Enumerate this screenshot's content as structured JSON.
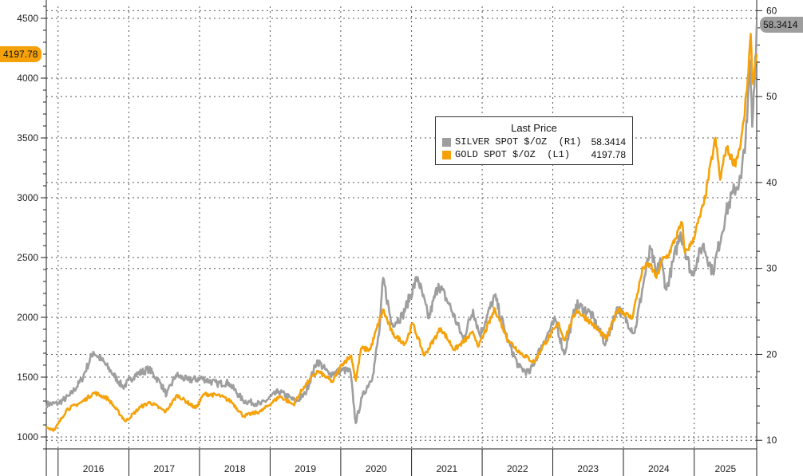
{
  "chart_data": {
    "type": "line",
    "x_range": [
      "2015-11-01",
      "2025-11-20"
    ],
    "left_axis": {
      "ticks": [
        1000,
        1500,
        2000,
        2500,
        3000,
        3500,
        4000,
        4500
      ],
      "ylim": [
        900,
        4600
      ]
    },
    "right_axis": {
      "ticks": [
        10,
        20,
        30,
        40,
        50,
        60
      ],
      "ylim": [
        9,
        60.5
      ]
    },
    "x_tick_labels": [
      "2016",
      "2017",
      "2018",
      "2019",
      "2020",
      "2021",
      "2022",
      "2023",
      "2024",
      "2025"
    ],
    "grid": true,
    "legend": {
      "title": "Last Price",
      "placement": "top-center-right",
      "entries": [
        {
          "label": "SILVER SPOT $/OZ  (R1)",
          "value": "58.3414",
          "color": "#9e9e9e"
        },
        {
          "label": "GOLD SPOT $/OZ  (L1)",
          "value": "4197.78",
          "color": "#f5a20a"
        }
      ]
    },
    "last_value_badges": {
      "left": "4197.78",
      "right": "58.3414"
    },
    "series": [
      {
        "name": "SILVER SPOT $/OZ (R1)",
        "axis": "right",
        "color": "#9e9e9e",
        "points": [
          [
            "2015-11-01",
            14.2
          ],
          [
            "2016-01-01",
            14.3
          ],
          [
            "2016-03-01",
            15.2
          ],
          [
            "2016-05-01",
            17.0
          ],
          [
            "2016-07-01",
            20.3
          ],
          [
            "2016-08-15",
            19.3
          ],
          [
            "2016-10-01",
            18.0
          ],
          [
            "2016-12-01",
            16.2
          ],
          [
            "2017-02-01",
            17.6
          ],
          [
            "2017-04-15",
            18.3
          ],
          [
            "2017-06-15",
            16.6
          ],
          [
            "2017-07-15",
            15.3
          ],
          [
            "2017-09-01",
            17.6
          ],
          [
            "2017-11-01",
            17.0
          ],
          [
            "2018-01-15",
            17.2
          ],
          [
            "2018-04-01",
            16.6
          ],
          [
            "2018-06-01",
            16.7
          ],
          [
            "2018-08-15",
            14.6
          ],
          [
            "2018-11-15",
            14.2
          ],
          [
            "2019-02-15",
            15.7
          ],
          [
            "2019-05-15",
            14.5
          ],
          [
            "2019-07-01",
            15.4
          ],
          [
            "2019-09-01",
            19.3
          ],
          [
            "2019-11-01",
            17.7
          ],
          [
            "2020-01-15",
            18.2
          ],
          [
            "2020-02-20",
            18.0
          ],
          [
            "2020-03-18",
            12.0
          ],
          [
            "2020-04-20",
            15.0
          ],
          [
            "2020-06-15",
            17.6
          ],
          [
            "2020-07-20",
            23.0
          ],
          [
            "2020-08-07",
            28.9
          ],
          [
            "2020-09-20",
            23.5
          ],
          [
            "2020-11-15",
            24.5
          ],
          [
            "2021-02-01",
            29.0
          ],
          [
            "2021-03-31",
            24.2
          ],
          [
            "2021-05-20",
            28.2
          ],
          [
            "2021-07-15",
            25.8
          ],
          [
            "2021-09-25",
            21.8
          ],
          [
            "2021-11-15",
            25.2
          ],
          [
            "2021-12-20",
            22.2
          ],
          [
            "2022-03-07",
            26.8
          ],
          [
            "2022-05-15",
            21.5
          ],
          [
            "2022-07-10",
            18.5
          ],
          [
            "2022-09-01",
            17.8
          ],
          [
            "2022-11-15",
            21.5
          ],
          [
            "2023-01-15",
            24.0
          ],
          [
            "2023-03-01",
            20.0
          ],
          [
            "2023-05-01",
            25.8
          ],
          [
            "2023-07-15",
            24.8
          ],
          [
            "2023-10-01",
            21.2
          ],
          [
            "2023-12-01",
            25.5
          ],
          [
            "2024-02-28",
            22.5
          ],
          [
            "2024-04-15",
            28.5
          ],
          [
            "2024-05-20",
            32.3
          ],
          [
            "2024-06-20",
            29.2
          ],
          [
            "2024-07-10",
            31.2
          ],
          [
            "2024-08-10",
            27.5
          ],
          [
            "2024-10-22",
            34.2
          ],
          [
            "2024-12-20",
            29.2
          ],
          [
            "2025-02-15",
            32.8
          ],
          [
            "2025-04-07",
            29.5
          ],
          [
            "2025-06-15",
            36.5
          ],
          [
            "2025-07-20",
            38.8
          ],
          [
            "2025-09-01",
            40.5
          ],
          [
            "2025-10-01",
            47.0
          ],
          [
            "2025-10-16",
            54.2
          ],
          [
            "2025-10-28",
            46.5
          ],
          [
            "2025-11-20",
            58.3414
          ]
        ]
      },
      {
        "name": "GOLD SPOT $/OZ (L1)",
        "axis": "left",
        "color": "#f5a20a",
        "points": [
          [
            "2015-11-01",
            1080
          ],
          [
            "2015-12-15",
            1060
          ],
          [
            "2016-02-15",
            1230
          ],
          [
            "2016-05-01",
            1290
          ],
          [
            "2016-07-06",
            1370
          ],
          [
            "2016-09-15",
            1320
          ],
          [
            "2016-12-15",
            1130
          ],
          [
            "2017-03-01",
            1250
          ],
          [
            "2017-04-20",
            1290
          ],
          [
            "2017-07-10",
            1210
          ],
          [
            "2017-09-08",
            1350
          ],
          [
            "2017-12-12",
            1240
          ],
          [
            "2018-01-25",
            1360
          ],
          [
            "2018-04-15",
            1345
          ],
          [
            "2018-06-15",
            1295
          ],
          [
            "2018-08-16",
            1175
          ],
          [
            "2018-11-15",
            1215
          ],
          [
            "2019-02-20",
            1340
          ],
          [
            "2019-05-01",
            1270
          ],
          [
            "2019-06-25",
            1420
          ],
          [
            "2019-09-04",
            1550
          ],
          [
            "2019-11-20",
            1460
          ],
          [
            "2020-01-08",
            1610
          ],
          [
            "2020-02-24",
            1680
          ],
          [
            "2020-03-19",
            1470
          ],
          [
            "2020-04-15",
            1740
          ],
          [
            "2020-06-01",
            1730
          ],
          [
            "2020-08-06",
            2065
          ],
          [
            "2020-09-25",
            1860
          ],
          [
            "2020-11-30",
            1780
          ],
          [
            "2021-01-06",
            1950
          ],
          [
            "2021-03-08",
            1680
          ],
          [
            "2021-06-01",
            1910
          ],
          [
            "2021-08-10",
            1730
          ],
          [
            "2021-11-16",
            1870
          ],
          [
            "2021-12-15",
            1760
          ],
          [
            "2022-03-08",
            2070
          ],
          [
            "2022-05-15",
            1810
          ],
          [
            "2022-07-20",
            1700
          ],
          [
            "2022-09-26",
            1625
          ],
          [
            "2022-11-15",
            1770
          ],
          [
            "2023-02-01",
            1950
          ],
          [
            "2023-02-28",
            1810
          ],
          [
            "2023-05-04",
            2060
          ],
          [
            "2023-07-15",
            1960
          ],
          [
            "2023-10-05",
            1820
          ],
          [
            "2023-12-04",
            2075
          ],
          [
            "2024-02-14",
            1990
          ],
          [
            "2024-04-12",
            2420
          ],
          [
            "2024-05-20",
            2440
          ],
          [
            "2024-06-20",
            2330
          ],
          [
            "2024-07-20",
            2480
          ],
          [
            "2024-08-20",
            2520
          ],
          [
            "2024-10-30",
            2790
          ],
          [
            "2024-11-14",
            2540
          ],
          [
            "2024-12-20",
            2620
          ],
          [
            "2025-02-20",
            2950
          ],
          [
            "2025-04-21",
            3500
          ],
          [
            "2025-05-15",
            3150
          ],
          [
            "2025-06-15",
            3420
          ],
          [
            "2025-07-30",
            3280
          ],
          [
            "2025-08-29",
            3450
          ],
          [
            "2025-09-15",
            3650
          ],
          [
            "2025-10-08",
            4050
          ],
          [
            "2025-10-20",
            4370
          ],
          [
            "2025-10-28",
            3950
          ],
          [
            "2025-11-20",
            4197.78
          ]
        ]
      }
    ]
  }
}
